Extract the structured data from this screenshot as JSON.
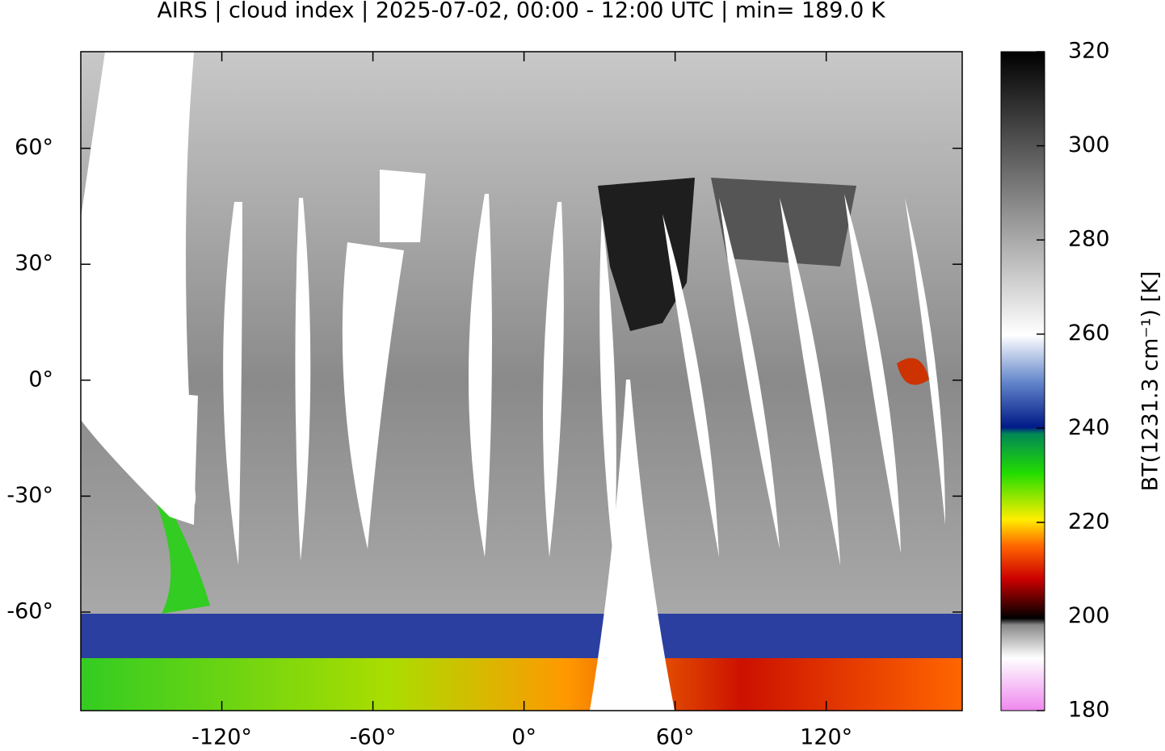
{
  "title": "AIRS | cloud index | 2025-07-02, 00:00 - 12:00 UTC | min= 189.0 K",
  "map": {
    "xlim": [
      -176,
      174
    ],
    "ylim": [
      -85.5,
      85
    ],
    "xticks": [
      {
        "value": -120,
        "label": "-120°"
      },
      {
        "value": -60,
        "label": "-60°"
      },
      {
        "value": 0,
        "label": "0°"
      },
      {
        "value": 60,
        "label": "60°"
      },
      {
        "value": 120,
        "label": "120°"
      }
    ],
    "yticks": [
      {
        "value": 60,
        "label": "60°"
      },
      {
        "value": 30,
        "label": "30°"
      },
      {
        "value": 0,
        "label": "0°"
      },
      {
        "value": -30,
        "label": "-30°"
      },
      {
        "value": -60,
        "label": "-60°"
      }
    ]
  },
  "colorbar": {
    "label": "BT(1231.3 cm⁻¹) [K]",
    "lim": [
      180,
      320
    ],
    "ticks": [
      180,
      200,
      220,
      240,
      260,
      280,
      300,
      320
    ]
  }
}
